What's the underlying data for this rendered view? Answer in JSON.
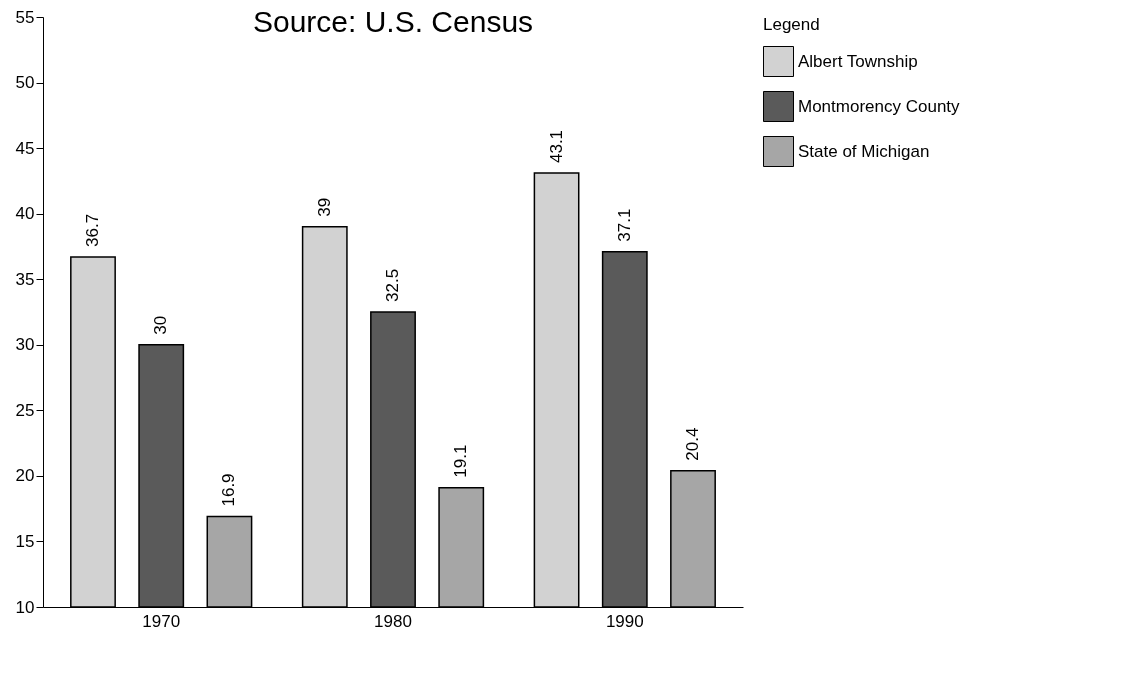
{
  "chart_data": {
    "type": "bar",
    "title": "Source: U.S. Census",
    "legend_title": "Legend",
    "categories": [
      "1970",
      "1980",
      "1990"
    ],
    "series": [
      {
        "name": "Albert Township",
        "color": "#d2d2d2",
        "values": [
          36.7,
          39,
          43.1
        ]
      },
      {
        "name": "Montmorency County",
        "color": "#5a5a5a",
        "values": [
          30,
          32.5,
          37.1
        ]
      },
      {
        "name": "State of Michigan",
        "color": "#a6a6a6",
        "values": [
          16.9,
          19.1,
          20.4
        ]
      }
    ],
    "ylim": [
      10,
      55
    ],
    "yticks": [
      10,
      15,
      20,
      25,
      30,
      35,
      40,
      45,
      50,
      55
    ],
    "grid": false,
    "legend": "top right",
    "data_labels": true
  }
}
